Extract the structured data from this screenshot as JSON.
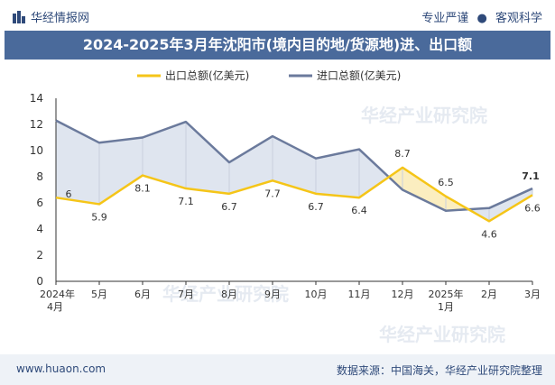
{
  "header": {
    "brand": "华经情报网",
    "tag1": "专业严谨",
    "separator": "●",
    "tag2": "客观科学"
  },
  "title": "2024-2025年3月年沈阳市(境内目的地/货源地)进、出口额",
  "footer": {
    "site": "www.huaon.com",
    "source": "数据来源：中国海关，华经产业研究院整理"
  },
  "watermark": "华经产业研究院",
  "colors": {
    "export": "#f5c518",
    "import": "#6b7a9c",
    "import_fill": "#dfe5ef",
    "export_fill": "#fbeec0",
    "title_bg": "#4a6a9b"
  },
  "chart_data": {
    "type": "line",
    "categories": [
      "2024年4月",
      "5月",
      "6月",
      "7月",
      "8月",
      "9月",
      "10月",
      "11月",
      "12月",
      "2025年1月",
      "2月",
      "3月"
    ],
    "series": [
      {
        "name": "出口总额(亿美元)",
        "values": [
          6.4,
          5.9,
          8.1,
          7.1,
          6.7,
          7.7,
          6.7,
          6.4,
          8.7,
          6.5,
          4.6,
          6.6
        ],
        "labels": [
          "6",
          "5.9",
          "8.1",
          "7.1",
          "6.7",
          "7.7",
          "6.7",
          "6.4",
          "8.7",
          "6.5",
          "4.6",
          "6.6"
        ]
      },
      {
        "name": "进口总额(亿美元)",
        "values": [
          12.3,
          10.6,
          11.0,
          12.2,
          9.1,
          11.1,
          9.4,
          10.1,
          7.0,
          5.4,
          5.6,
          7.1
        ],
        "labels": [
          "",
          "",
          "",
          "",
          "",
          "",
          "",
          "",
          "",
          "",
          "",
          "7.1"
        ]
      }
    ],
    "ylim": [
      0,
      14
    ],
    "yticks": [
      0,
      2,
      4,
      6,
      8,
      10,
      12,
      14
    ],
    "legend_position": "top-center",
    "grid": false
  }
}
